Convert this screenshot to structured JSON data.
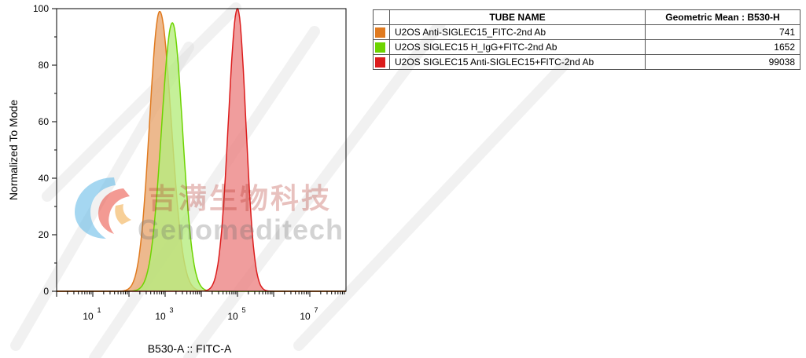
{
  "chart_data": {
    "type": "area",
    "xlabel": "B530-A :: FITC-A",
    "ylabel": "Normalized To Mode",
    "x_scale": "log",
    "xlim_log10": [
      0,
      8
    ],
    "ylim": [
      0,
      100
    ],
    "x_ticks": [
      {
        "base": "10",
        "exp": "1"
      },
      {
        "base": "10",
        "exp": "3"
      },
      {
        "base": "10",
        "exp": "5"
      },
      {
        "base": "10",
        "exp": "7"
      }
    ],
    "y_ticks": [
      "0",
      "20",
      "40",
      "60",
      "80",
      "100"
    ],
    "grid": false,
    "legend_placement": "right",
    "series": [
      {
        "name": "U2OS Anti-SIGLEC15_FITC-2nd Ab",
        "color": "#e07a1f",
        "fill": "#e8a872",
        "peak_log10": 2.85,
        "peak_height": 99,
        "width_left": 0.28,
        "width_right": 0.32
      },
      {
        "name": "U2OS SIGLEC15 H_IgG+FITC-2nd Ab",
        "color": "#6dd400",
        "fill": "#b6ec80",
        "peak_log10": 3.2,
        "peak_height": 95,
        "width_left": 0.3,
        "width_right": 0.28
      },
      {
        "name": "U2OS SIGLEC15 Anti-SIGLEC15+FITC-2nd Ab",
        "color": "#dc1c1c",
        "fill": "#ec8585",
        "peak_log10": 5.0,
        "peak_height": 100,
        "width_left": 0.25,
        "width_right": 0.23
      }
    ]
  },
  "table": {
    "headers": [
      "TUBE NAME",
      "Geometric Mean : B530-H"
    ],
    "rows": [
      {
        "color": "#e07a1f",
        "name": "U2OS Anti-SIGLEC15_FITC-2nd Ab",
        "value": "741"
      },
      {
        "color": "#6dd400",
        "name": "U2OS SIGLEC15 H_IgG+FITC-2nd Ab",
        "value": "1652"
      },
      {
        "color": "#dc1c1c",
        "name": "U2OS SIGLEC15 Anti-SIGLEC15+FITC-2nd Ab",
        "value": "99038"
      }
    ]
  },
  "watermark": {
    "cn": "吉满生物科技",
    "en": "Genomeditech"
  }
}
